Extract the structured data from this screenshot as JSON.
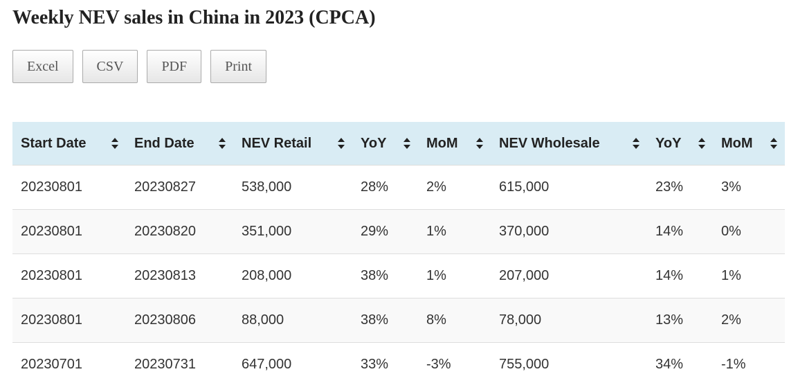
{
  "title": "Weekly NEV sales in China in 2023 (CPCA)",
  "buttons": [
    "Excel",
    "CSV",
    "PDF",
    "Print"
  ],
  "columns": [
    "Start Date",
    "End Date",
    "NEV Retail",
    "YoY",
    "MoM",
    "NEV Wholesale",
    "YoY",
    "MoM"
  ],
  "rows": [
    [
      "20230801",
      "20230827",
      "538,000",
      "28%",
      "2%",
      "615,000",
      "23%",
      "3%"
    ],
    [
      "20230801",
      "20230820",
      "351,000",
      "29%",
      "1%",
      "370,000",
      "14%",
      "0%"
    ],
    [
      "20230801",
      "20230813",
      "208,000",
      "38%",
      "1%",
      "207,000",
      "14%",
      "1%"
    ],
    [
      "20230801",
      "20230806",
      "88,000",
      "38%",
      "8%",
      "78,000",
      "13%",
      "2%"
    ],
    [
      "20230701",
      "20230731",
      "647,000",
      "33%",
      "-3%",
      "755,000",
      "34%",
      "-1%"
    ]
  ],
  "colors": {
    "header_bg": "#d9ecf4",
    "alt_row": "#f9f9f9"
  }
}
